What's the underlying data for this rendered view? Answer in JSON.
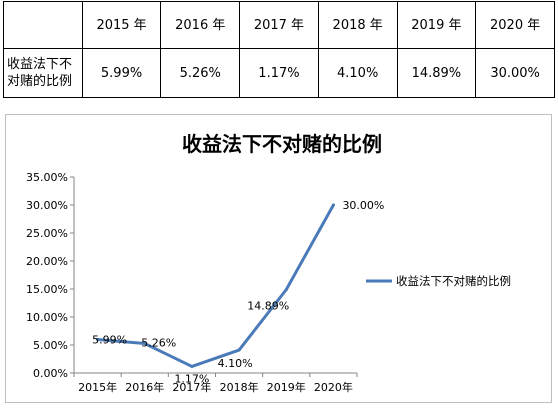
{
  "table": {
    "years": [
      "2015 年",
      "2016 年",
      "2017 年",
      "2018 年",
      "2019 年",
      "2020 年"
    ],
    "row_label": "收益法下不对赌的比例",
    "values": [
      "5.99%",
      "5.26%",
      "1.17%",
      "4.10%",
      "14.89%",
      "30.00%"
    ]
  },
  "chart_data": {
    "type": "line",
    "title": "收益法下不对赌的比例",
    "categories": [
      "2015年",
      "2016年",
      "2017年",
      "2018年",
      "2019年",
      "2020年"
    ],
    "series": [
      {
        "name": "收益法下不对赌的比例",
        "values": [
          5.99,
          5.26,
          1.17,
          4.1,
          14.89,
          30.0
        ],
        "labels": [
          "5.99%",
          "5.26%",
          "1.17%",
          "4.10%",
          "14.89%",
          "30.00%"
        ]
      }
    ],
    "yticks": [
      "0.00%",
      "5.00%",
      "10.00%",
      "15.00%",
      "20.00%",
      "25.00%",
      "30.00%",
      "35.00%"
    ],
    "ylim": [
      0,
      35
    ],
    "grid": false,
    "legend": "right",
    "line_color": "#4a7ab8"
  }
}
